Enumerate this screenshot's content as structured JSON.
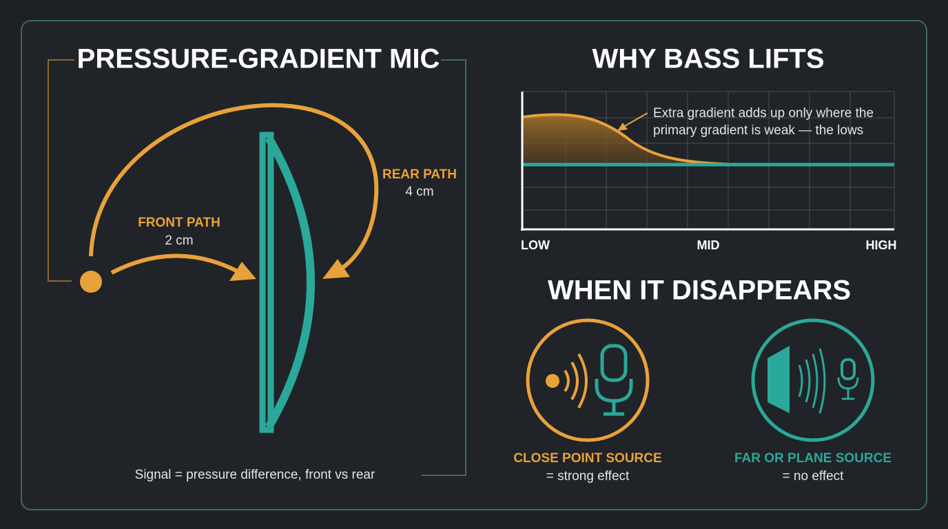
{
  "left": {
    "title": "PRESSURE-GRADIENT MIC",
    "front_path": {
      "label": "FRONT PATH",
      "distance": "2 cm"
    },
    "rear_path": {
      "label": "REAR PATH",
      "distance": "4 cm"
    },
    "caption": "Signal = pressure difference, front vs rear"
  },
  "bass": {
    "title": "WHY BASS LIFTS",
    "annotation": [
      "Extra gradient adds up only where the",
      "primary gradient is weak — the lows"
    ],
    "axis_labels": [
      "LOW",
      "MID",
      "HIGH"
    ]
  },
  "disappears": {
    "title": "WHEN IT DISAPPEARS",
    "cases": [
      {
        "label": "CLOSE POINT SOURCE",
        "effect": "= strong effect"
      },
      {
        "label": "FAR OR PLANE SOURCE",
        "effect": "= no effect"
      }
    ]
  }
}
